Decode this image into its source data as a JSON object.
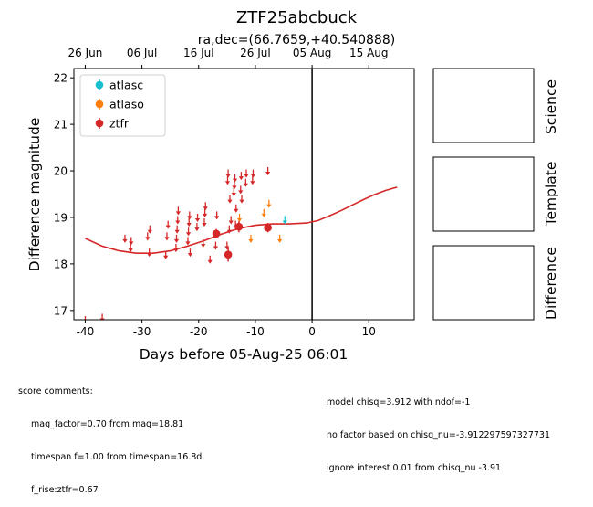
{
  "chart_data": {
    "type": "scatter",
    "title": "ZTF25abcbuck",
    "subtitle": "ra,dec=(66.7659,+40.540888)",
    "xlabel": "Days before 05-Aug-25 06:01",
    "ylabel": "Difference magnitude",
    "xlim": [
      -42,
      18
    ],
    "ylim": [
      22.2,
      16.8
    ],
    "y_inverted": true,
    "x_ticks": [
      -40,
      -30,
      -20,
      -10,
      0,
      10
    ],
    "y_ticks": [
      17,
      18,
      19,
      20,
      21,
      22
    ],
    "top_axis_ticks": [
      {
        "label": "26 Jun",
        "x": -40
      },
      {
        "label": "06 Jul",
        "x": -30
      },
      {
        "label": "16 Jul",
        "x": -20
      },
      {
        "label": "26 Jul",
        "x": -10
      },
      {
        "label": "05 Aug",
        "x": 0
      },
      {
        "label": "15 Aug",
        "x": 10
      }
    ],
    "vertical_line_x": 0,
    "legend_position": "upper-left",
    "series": [
      {
        "name": "atlasc",
        "color": "#17becf",
        "detections": [],
        "upper_limits": [
          {
            "x": -4.8,
            "y": 18.95
          }
        ]
      },
      {
        "name": "atlaso",
        "color": "#ff7f0e",
        "detections": [],
        "upper_limits": [
          {
            "x": -12.8,
            "y": 19.0
          },
          {
            "x": -10.8,
            "y": 18.55
          },
          {
            "x": -8.5,
            "y": 19.1
          },
          {
            "x": -7.6,
            "y": 19.3
          },
          {
            "x": -5.7,
            "y": 18.55
          }
        ]
      },
      {
        "name": "ztfr",
        "color": "#d62728",
        "detections": [
          {
            "x": -14.8,
            "y": 18.2,
            "err": 0.15
          },
          {
            "x": -16.9,
            "y": 18.65,
            "err": 0.1
          },
          {
            "x": -12.9,
            "y": 18.8,
            "err": 0.12
          },
          {
            "x": -7.8,
            "y": 18.78,
            "err": 0.1
          }
        ],
        "upper_limits": [
          {
            "x": -40.0,
            "y": 16.8
          },
          {
            "x": -37.0,
            "y": 16.85
          },
          {
            "x": -33.0,
            "y": 18.55
          },
          {
            "x": -32.0,
            "y": 18.35
          },
          {
            "x": -31.9,
            "y": 18.5
          },
          {
            "x": -29.0,
            "y": 18.6
          },
          {
            "x": -28.7,
            "y": 18.25
          },
          {
            "x": -28.6,
            "y": 18.75
          },
          {
            "x": -25.8,
            "y": 18.2
          },
          {
            "x": -25.6,
            "y": 18.6
          },
          {
            "x": -25.4,
            "y": 18.85
          },
          {
            "x": -24.0,
            "y": 18.35
          },
          {
            "x": -23.9,
            "y": 18.55
          },
          {
            "x": -23.8,
            "y": 18.75
          },
          {
            "x": -23.7,
            "y": 18.95
          },
          {
            "x": -23.6,
            "y": 19.15
          },
          {
            "x": -21.9,
            "y": 18.5
          },
          {
            "x": -21.8,
            "y": 18.7
          },
          {
            "x": -21.7,
            "y": 18.9
          },
          {
            "x": -21.6,
            "y": 19.05
          },
          {
            "x": -21.5,
            "y": 18.25
          },
          {
            "x": -20.3,
            "y": 18.8
          },
          {
            "x": -20.2,
            "y": 19.0
          },
          {
            "x": -19.2,
            "y": 18.45
          },
          {
            "x": -19.0,
            "y": 18.9
          },
          {
            "x": -18.9,
            "y": 19.1
          },
          {
            "x": -18.8,
            "y": 19.25
          },
          {
            "x": -18.0,
            "y": 18.1
          },
          {
            "x": -17.0,
            "y": 18.4
          },
          {
            "x": -16.8,
            "y": 19.05
          },
          {
            "x": -15.0,
            "y": 18.4
          },
          {
            "x": -14.9,
            "y": 19.8
          },
          {
            "x": -14.8,
            "y": 19.95
          },
          {
            "x": -14.6,
            "y": 18.75
          },
          {
            "x": -14.5,
            "y": 19.4
          },
          {
            "x": -14.3,
            "y": 18.95
          },
          {
            "x": -13.8,
            "y": 19.55
          },
          {
            "x": -13.7,
            "y": 19.7
          },
          {
            "x": -13.6,
            "y": 19.85
          },
          {
            "x": -13.5,
            "y": 18.85
          },
          {
            "x": -13.4,
            "y": 19.2
          },
          {
            "x": -12.6,
            "y": 19.6
          },
          {
            "x": -12.5,
            "y": 19.9
          },
          {
            "x": -12.4,
            "y": 19.4
          },
          {
            "x": -11.7,
            "y": 19.75
          },
          {
            "x": -11.6,
            "y": 19.95
          },
          {
            "x": -10.5,
            "y": 19.8
          },
          {
            "x": -10.4,
            "y": 19.95
          },
          {
            "x": -7.8,
            "y": 20.0
          }
        ]
      }
    ],
    "model_curve": {
      "color": "#d62728",
      "x": [
        -40,
        -37,
        -34,
        -31,
        -28,
        -25,
        -22,
        -19,
        -16,
        -13,
        -10,
        -7,
        -4,
        -1,
        1,
        3,
        5,
        7,
        9,
        11,
        13,
        15
      ],
      "y": [
        18.55,
        18.38,
        18.28,
        18.23,
        18.23,
        18.28,
        18.38,
        18.5,
        18.64,
        18.76,
        18.83,
        18.86,
        18.86,
        18.88,
        18.93,
        19.03,
        19.14,
        19.26,
        19.38,
        19.49,
        19.58,
        19.65
      ]
    },
    "side_panels": [
      "Science",
      "Template",
      "Difference"
    ]
  },
  "comments": {
    "header": "score comments:",
    "left_lines": [
      "mag_factor=0.70 from mag=18.81",
      "timespan f=1.00 from timespan=16.8d",
      "f_rise:ztfr=0.67"
    ],
    "right_lines": [
      "model chisq=3.912 with ndof=-1",
      "no factor based on chisq_nu=-3.912297597327731",
      "ignore interest 0.01 from chisq_nu -3.91"
    ]
  }
}
